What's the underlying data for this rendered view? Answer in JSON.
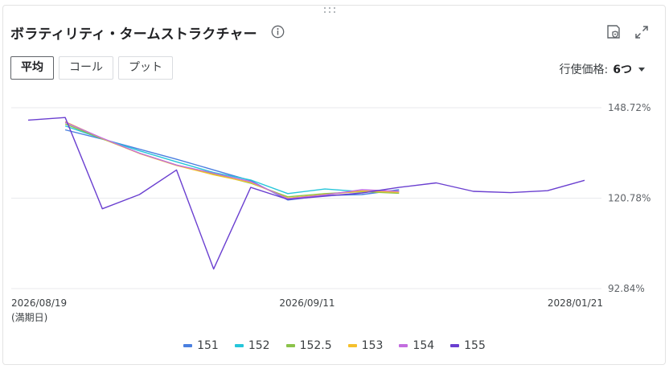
{
  "header": {
    "title": "ボラティリティ・タームストラクチャー"
  },
  "icons": {
    "drag": "drag-handle-icon",
    "info": "info-icon",
    "settings": "settings-shield-icon",
    "expand": "expand-icon"
  },
  "tabs": [
    {
      "label": "平均",
      "active": true
    },
    {
      "label": "コール",
      "active": false
    },
    {
      "label": "プット",
      "active": false
    }
  ],
  "strike_selector": {
    "label": "行使価格:",
    "value": "6つ"
  },
  "chart_data": {
    "type": "line",
    "y_tick_labels": [
      "148.72%",
      "120.78%",
      "92.84%"
    ],
    "y_ticks": [
      148.72,
      120.78,
      92.84
    ],
    "ylim": [
      92.84,
      148.72
    ],
    "x_tick_labels": [
      "2026/08/19",
      "2026/09/11",
      "2028/01/21"
    ],
    "x_sub_label": "(満期日)",
    "x_count": 16,
    "x_ticks": [
      0,
      7,
      15
    ],
    "grid": true,
    "legend_position": "bottom",
    "series": [
      {
        "name": "151",
        "color": "#4a7fe0",
        "x": [
          1,
          2,
          3,
          4,
          5,
          6,
          7,
          8,
          9,
          10
        ],
        "values": [
          141.9,
          139.0,
          135.9,
          132.8,
          129.5,
          126.2,
          120.2,
          121.6,
          121.9,
          123.4
        ]
      },
      {
        "name": "152",
        "color": "#26c6da",
        "x": [
          1,
          2,
          3,
          4,
          5,
          6,
          7,
          8,
          9,
          10
        ],
        "values": [
          143.1,
          139.1,
          135.4,
          132.0,
          128.7,
          126.4,
          122.2,
          123.6,
          122.8,
          122.9
        ]
      },
      {
        "name": "152.5",
        "color": "#8bc34a",
        "x": [
          1,
          2,
          3,
          4,
          5,
          6,
          7,
          8,
          9,
          10
        ],
        "values": [
          143.7,
          139.1,
          134.7,
          131.0,
          128.3,
          125.4,
          121.2,
          122.2,
          122.8,
          122.3
        ]
      },
      {
        "name": "153",
        "color": "#f5c02c",
        "x": [
          1,
          2,
          3,
          4,
          5,
          6,
          7,
          8,
          9,
          10
        ],
        "values": [
          144.4,
          139.2,
          134.6,
          130.9,
          128.0,
          125.6,
          120.8,
          121.9,
          123.0,
          122.6
        ]
      },
      {
        "name": "154",
        "color": "#c36ddf",
        "x": [
          1,
          2,
          3,
          4,
          5,
          6,
          7,
          8,
          9,
          10
        ],
        "values": [
          144.2,
          139.3,
          134.7,
          131.0,
          128.5,
          125.9,
          120.6,
          121.8,
          123.4,
          122.9
        ]
      },
      {
        "name": "155",
        "color": "#6a3fd0",
        "x": [
          0,
          1,
          2,
          3,
          4,
          5,
          6,
          7,
          8,
          9,
          10,
          11,
          12,
          13,
          14,
          15
        ],
        "values": [
          144.9,
          145.7,
          117.5,
          121.9,
          129.5,
          98.9,
          124.1,
          120.4,
          121.4,
          122.4,
          124.1,
          125.5,
          122.9,
          122.5,
          123.1,
          126.3
        ]
      }
    ]
  }
}
